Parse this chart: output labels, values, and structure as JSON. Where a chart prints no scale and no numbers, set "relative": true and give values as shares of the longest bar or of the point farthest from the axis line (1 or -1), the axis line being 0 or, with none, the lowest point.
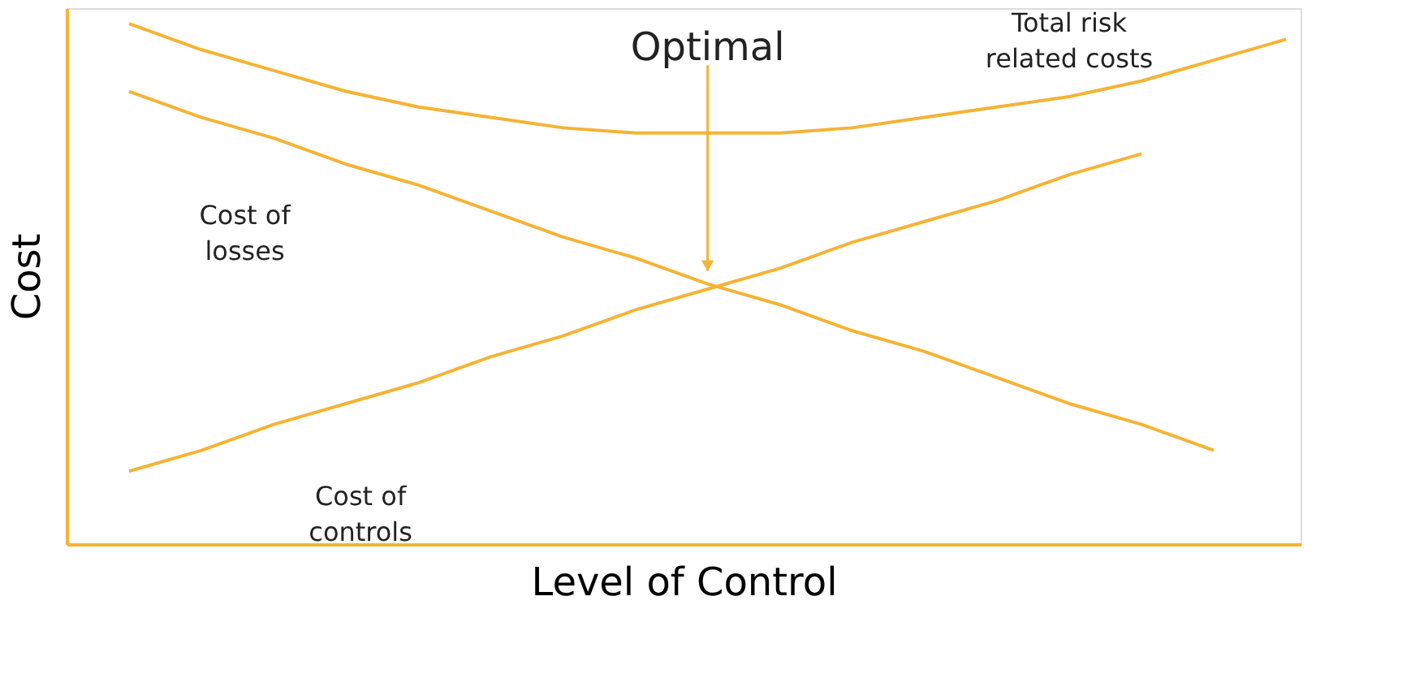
{
  "chart_data": {
    "type": "line",
    "relative": true,
    "xlabel": "Level of Control",
    "ylabel": "Cost",
    "categories": [
      null,
      null,
      null,
      null,
      null,
      null,
      null,
      null,
      null,
      null,
      null,
      null,
      null,
      null,
      null,
      null,
      null
    ],
    "series": [
      {
        "name": "Total risk related costs",
        "color": "#f5b335",
        "values": [
          1.0,
          0.95,
          0.91,
          0.87,
          0.84,
          0.82,
          0.8,
          0.79,
          0.79,
          0.79,
          0.8,
          0.82,
          0.84,
          0.86,
          0.89,
          0.93,
          0.97
        ]
      },
      {
        "name": "Cost of losses",
        "color": "#f5b335",
        "values": [
          0.87,
          0.82,
          0.78,
          0.73,
          0.69,
          0.64,
          0.59,
          0.55,
          0.5,
          0.46,
          0.41,
          0.37,
          0.32,
          0.27,
          0.23,
          0.18,
          null
        ]
      },
      {
        "name": "Cost of controls",
        "color": "#f5b335",
        "values": [
          0.14,
          0.18,
          0.23,
          0.27,
          0.31,
          0.36,
          0.4,
          0.45,
          0.49,
          0.53,
          0.58,
          0.62,
          0.66,
          0.71,
          0.75,
          null,
          null
        ]
      }
    ],
    "annotations": [
      "Optimal"
    ],
    "grid": false,
    "marker": "none",
    "line_style": "solid"
  }
}
